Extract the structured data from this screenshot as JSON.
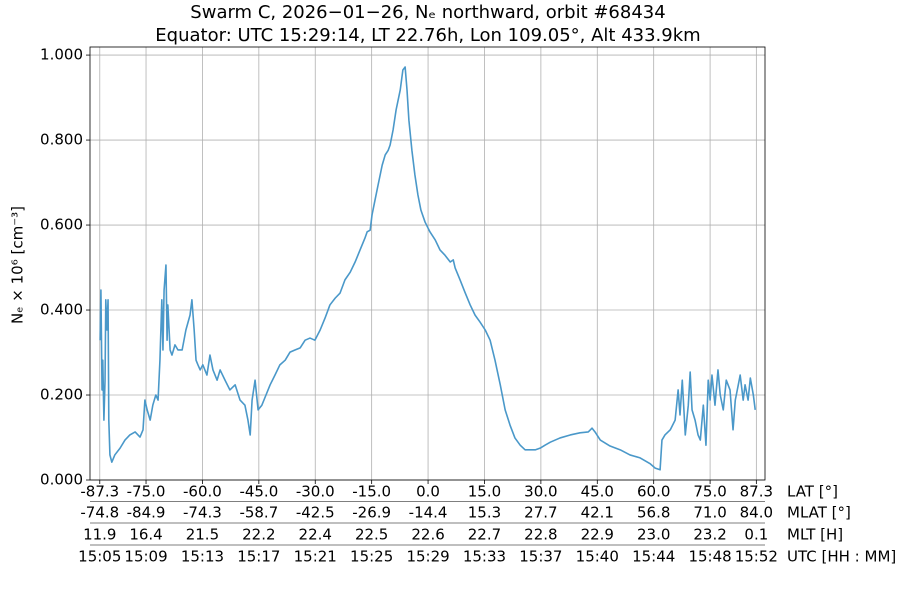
{
  "chart_data": {
    "type": "line",
    "title": "Swarm C, 2026−01−26, Nₑ northward, orbit #68434",
    "subtitle": "Equator: UTC 15:29:14, LT 22.76h, Lon 109.05°, Alt 433.9km",
    "ylabel": "Nₑ × 10⁶ [cm⁻³]",
    "xlabel": "LAT [°]",
    "color": "#4a98c9",
    "grid": true,
    "xlim": [
      -89.9,
      89.6
    ],
    "ylim": [
      0,
      1.019
    ],
    "yticks": [
      {
        "value": 0,
        "label": "0.000"
      },
      {
        "value": 0.2,
        "label": "0.200"
      },
      {
        "value": 0.4,
        "label": "0.400"
      },
      {
        "value": 0.6,
        "label": "0.600"
      },
      {
        "value": 0.8,
        "label": "0.800"
      },
      {
        "value": 1,
        "label": "1.000"
      }
    ],
    "xticks": [
      -87.3,
      {
        "value": -75,
        "label": "-75.0"
      },
      {
        "value": -60,
        "label": "-60.0"
      },
      {
        "value": -45,
        "label": "-45.0"
      },
      {
        "value": -30,
        "label": "-30.0"
      },
      {
        "value": -15,
        "label": "-15.0"
      },
      {
        "value": 0,
        "label": "0.0"
      },
      {
        "value": 15,
        "label": "15.0"
      },
      {
        "value": 30,
        "label": "30.0"
      },
      {
        "value": 45,
        "label": "45.0"
      },
      {
        "value": 60,
        "label": "60.0"
      },
      {
        "value": 75,
        "label": "75.0"
      },
      87.3
    ],
    "x_rows": [
      {
        "name": "MLAT [°]",
        "labels": [
          "-74.8",
          "-84.9",
          "-74.3",
          "-58.7",
          "-42.5",
          "-26.9",
          "-14.4",
          "15.3",
          "27.7",
          "42.1",
          "56.8",
          "71.0",
          "84.0"
        ]
      },
      {
        "name": "MLT [H]",
        "labels": [
          "11.9",
          "16.4",
          "21.5",
          "22.2",
          "22.4",
          "22.5",
          "22.6",
          "22.7",
          "22.8",
          "22.9",
          "23.0",
          "23.2",
          "0.1"
        ]
      },
      {
        "name": "UTC [HH : MM]",
        "labels": [
          "15:05",
          "15:09",
          "15:13",
          "15:17",
          "15:21",
          "15:25",
          "15:29",
          "15:33",
          "15:37",
          "15:40",
          "15:44",
          "15:48",
          "15:52"
        ]
      }
    ],
    "x": [
      -87.2,
      -87.0,
      -86.7,
      -86.5,
      -86.2,
      -85.9,
      -85.7,
      -85.4,
      -85.1,
      -84.9,
      -84.6,
      -84.1,
      -83.3,
      -81.9,
      -80.6,
      -79.3,
      -77.9,
      -76.6,
      -75.8,
      -75.3,
      -74.7,
      -73.9,
      -73.2,
      -72.4,
      -71.8,
      -71.3,
      -70.8,
      -70.5,
      -70.2,
      -69.7,
      -69.4,
      -69.2,
      -68.6,
      -68.1,
      -67.3,
      -66.5,
      -65.4,
      -64.4,
      -63.3,
      -62.8,
      -62.2,
      -61.7,
      -61.2,
      -60.6,
      -59.9,
      -58.8,
      -58.0,
      -57.2,
      -56.1,
      -55.3,
      -54.0,
      -52.7,
      -51.3,
      -50.0,
      -48.7,
      -47.9,
      -47.3,
      -46.8,
      -46.0,
      -45.2,
      -44.2,
      -43.1,
      -42.0,
      -40.7,
      -39.4,
      -38.0,
      -36.7,
      -35.4,
      -34.0,
      -32.7,
      -31.4,
      -30.1,
      -28.7,
      -27.4,
      -26.1,
      -24.7,
      -23.4,
      -22.1,
      -20.7,
      -19.4,
      -18.1,
      -16.8,
      -16.2,
      -15.4,
      -14.9,
      -14.1,
      -13.3,
      -12.2,
      -11.4,
      -10.6,
      -10.1,
      -9.3,
      -8.5,
      -7.4,
      -6.7,
      -6.1,
      -5.6,
      -5.1,
      -4.3,
      -3.5,
      -2.7,
      -1.9,
      -0.8,
      0.5,
      1.9,
      3.2,
      4.5,
      5.9,
      6.7,
      7.2,
      8.5,
      9.8,
      11.2,
      12.5,
      13.8,
      15.2,
      16.5,
      17.8,
      19.2,
      20.5,
      21.8,
      23.1,
      24.5,
      25.8,
      27.1,
      28.5,
      29.8,
      31.1,
      32.5,
      35.1,
      37.8,
      40.4,
      42.6,
      43.6,
      44.4,
      45.8,
      48.4,
      51.1,
      53.7,
      56.4,
      59.1,
      60.4,
      61.7,
      62.2,
      63.0,
      64.4,
      65.7,
      66.5,
      67.0,
      67.6,
      68.4,
      69.2,
      69.7,
      70.2,
      71.0,
      71.8,
      72.4,
      73.2,
      73.9,
      74.5,
      75.0,
      75.5,
      76.3,
      77.1,
      77.7,
      78.5,
      79.3,
      80.3,
      81.1,
      81.7,
      82.5,
      83.0,
      83.8,
      84.3,
      85.1,
      85.7,
      86.5,
      87.0
    ],
    "values": [
      0.329,
      0.447,
      0.212,
      0.282,
      0.141,
      0.235,
      0.424,
      0.353,
      0.424,
      0.141,
      0.059,
      0.042,
      0.059,
      0.075,
      0.094,
      0.106,
      0.113,
      0.101,
      0.118,
      0.188,
      0.165,
      0.141,
      0.176,
      0.2,
      0.188,
      0.282,
      0.424,
      0.306,
      0.447,
      0.506,
      0.329,
      0.412,
      0.306,
      0.294,
      0.318,
      0.306,
      0.306,
      0.353,
      0.388,
      0.424,
      0.353,
      0.282,
      0.271,
      0.259,
      0.271,
      0.247,
      0.294,
      0.259,
      0.235,
      0.259,
      0.235,
      0.212,
      0.224,
      0.188,
      0.176,
      0.141,
      0.106,
      0.188,
      0.235,
      0.165,
      0.176,
      0.2,
      0.224,
      0.247,
      0.271,
      0.282,
      0.301,
      0.306,
      0.311,
      0.329,
      0.334,
      0.329,
      0.353,
      0.381,
      0.412,
      0.428,
      0.44,
      0.471,
      0.489,
      0.513,
      0.541,
      0.569,
      0.584,
      0.588,
      0.624,
      0.659,
      0.694,
      0.741,
      0.765,
      0.776,
      0.788,
      0.824,
      0.871,
      0.918,
      0.965,
      0.972,
      0.918,
      0.847,
      0.776,
      0.718,
      0.671,
      0.635,
      0.607,
      0.584,
      0.565,
      0.541,
      0.529,
      0.513,
      0.518,
      0.499,
      0.471,
      0.442,
      0.412,
      0.388,
      0.372,
      0.353,
      0.329,
      0.282,
      0.224,
      0.165,
      0.129,
      0.099,
      0.082,
      0.071,
      0.071,
      0.071,
      0.075,
      0.082,
      0.089,
      0.099,
      0.106,
      0.111,
      0.113,
      0.122,
      0.113,
      0.094,
      0.08,
      0.071,
      0.059,
      0.052,
      0.038,
      0.028,
      0.024,
      0.094,
      0.106,
      0.118,
      0.141,
      0.212,
      0.153,
      0.235,
      0.106,
      0.176,
      0.254,
      0.165,
      0.141,
      0.106,
      0.094,
      0.176,
      0.082,
      0.235,
      0.188,
      0.247,
      0.176,
      0.259,
      0.2,
      0.165,
      0.235,
      0.212,
      0.118,
      0.188,
      0.224,
      0.247,
      0.188,
      0.224,
      0.188,
      0.24,
      0.2,
      0.165
    ]
  }
}
